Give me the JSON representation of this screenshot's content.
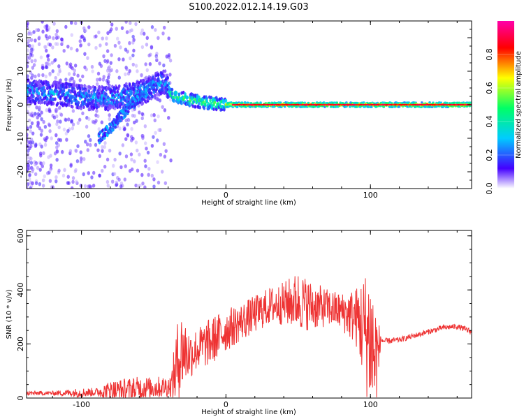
{
  "title": "S100.2022.012.14.19.G03",
  "chart_data": [
    {
      "type": "heatmap",
      "xlabel": "Height of straight line (km)",
      "ylabel": "Frequency (Hz)",
      "xlim": [
        -138,
        170
      ],
      "ylim": [
        -25,
        25
      ],
      "xticks": [
        -100,
        0,
        100
      ],
      "yticks": [
        -20,
        -10,
        0,
        10,
        20
      ],
      "colorbar": {
        "label": "Normalized spectral amplitude",
        "range": [
          0,
          1
        ],
        "ticks": [
          "0.0",
          "0.2",
          "0.4",
          "0.6",
          "0.8"
        ],
        "colormap": [
          "#ffffff",
          "#4400ff",
          "#00ccff",
          "#00ff66",
          "#ffff00",
          "#ff0000",
          "#ff00aa"
        ]
      },
      "ridge": {
        "description_points": [
          [
            -138,
            4
          ],
          [
            -110,
            3
          ],
          [
            -95,
            2
          ],
          [
            -80,
            2
          ],
          [
            -65,
            3
          ],
          [
            -55,
            4
          ],
          [
            -48,
            6
          ],
          [
            -42,
            7
          ],
          [
            -38,
            3
          ],
          [
            -30,
            2
          ],
          [
            -20,
            1
          ],
          [
            -10,
            0.5
          ],
          [
            0,
            0
          ],
          [
            50,
            0
          ],
          [
            100,
            0
          ],
          [
            170,
            0
          ]
        ],
        "branch_points": [
          [
            -88,
            -10
          ],
          [
            -80,
            -7
          ],
          [
            -72,
            -3
          ],
          [
            -65,
            0
          ],
          [
            -58,
            3
          ],
          [
            -50,
            6
          ]
        ]
      }
    },
    {
      "type": "line",
      "xlabel": "Height of straight line (km)",
      "ylabel": "SNR (10 * v/v)",
      "xlim": [
        -138,
        170
      ],
      "ylim": [
        0,
        620
      ],
      "xticks": [
        -100,
        0,
        100
      ],
      "yticks": [
        0,
        200,
        400,
        600
      ],
      "color": "#ee3333",
      "envelope": {
        "x": [
          -138,
          -120,
          -100,
          -90,
          -80,
          -60,
          -45,
          -38,
          -34,
          -30,
          -25,
          -20,
          -10,
          0,
          10,
          20,
          30,
          40,
          50,
          60,
          70,
          80,
          90,
          95,
          100,
          104,
          107,
          110,
          120,
          130,
          140,
          150,
          160,
          170
        ],
        "mean": [
          18,
          18,
          20,
          22,
          25,
          35,
          40,
          45,
          120,
          180,
          160,
          180,
          210,
          250,
          280,
          310,
          340,
          350,
          360,
          340,
          335,
          320,
          300,
          260,
          220,
          120,
          215,
          210,
          215,
          230,
          245,
          260,
          265,
          245
        ],
        "amp": [
          8,
          8,
          18,
          15,
          40,
          45,
          40,
          40,
          160,
          150,
          90,
          80,
          90,
          80,
          70,
          70,
          70,
          80,
          110,
          90,
          70,
          70,
          110,
          200,
          280,
          250,
          15,
          12,
          10,
          10,
          10,
          10,
          10,
          12
        ]
      }
    }
  ]
}
